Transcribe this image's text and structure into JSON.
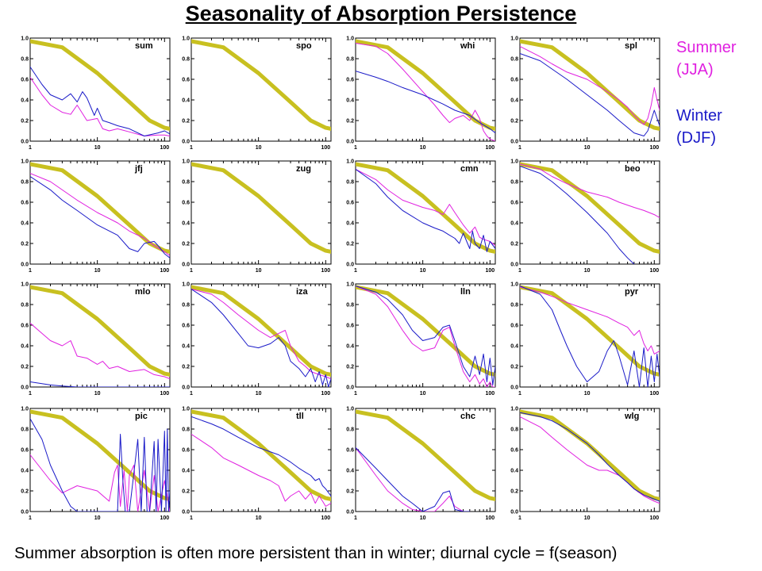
{
  "title": "Seasonality of Absorption Persistence",
  "legend": {
    "summer": [
      "Summer",
      "(JJA)"
    ],
    "winter": [
      "Winter",
      "(DJF)"
    ]
  },
  "caption": "Summer absorption is often more persistent than in winter; diurnal cycle = f(season)",
  "colors": {
    "reference": "#c8c020",
    "summer": "#e020e0",
    "winter": "#1a1ac8"
  },
  "chart_data": {
    "type": "line",
    "xscale": "log",
    "xlim": [
      1,
      120
    ],
    "ylim": [
      0,
      1
    ],
    "xticks": [
      "1",
      "10",
      "100"
    ],
    "yticks": [
      "0.0",
      "0.2",
      "0.4",
      "0.6",
      "0.8",
      "1.0"
    ],
    "reference": {
      "x": [
        1,
        3,
        10,
        30,
        60,
        100,
        120
      ],
      "y": [
        0.97,
        0.91,
        0.66,
        0.38,
        0.2,
        0.13,
        0.12
      ]
    },
    "panels": [
      {
        "name": "sum",
        "summer": {
          "x": [
            1,
            1.5,
            2,
            3,
            4,
            5,
            7,
            10,
            12,
            15,
            20,
            30,
            50,
            80,
            100,
            120
          ],
          "y": [
            0.62,
            0.45,
            0.35,
            0.28,
            0.26,
            0.35,
            0.2,
            0.22,
            0.12,
            0.1,
            0.12,
            0.09,
            0.05,
            0.06,
            0.06,
            0.05
          ]
        },
        "winter": {
          "x": [
            1,
            1.5,
            2,
            3,
            4,
            5,
            6,
            7,
            9,
            10,
            12,
            15,
            20,
            30,
            50,
            80,
            100,
            120
          ],
          "y": [
            0.72,
            0.55,
            0.45,
            0.4,
            0.46,
            0.38,
            0.48,
            0.42,
            0.25,
            0.32,
            0.2,
            0.18,
            0.15,
            0.12,
            0.05,
            0.08,
            0.1,
            0.07
          ]
        }
      },
      {
        "name": "spo",
        "summer": null,
        "winter": null
      },
      {
        "name": "whi",
        "summer": {
          "x": [
            1,
            2,
            3,
            5,
            10,
            15,
            20,
            25,
            30,
            40,
            50,
            60,
            70,
            80,
            90,
            100,
            120
          ],
          "y": [
            0.95,
            0.92,
            0.85,
            0.7,
            0.48,
            0.35,
            0.25,
            0.18,
            0.22,
            0.25,
            0.2,
            0.3,
            0.22,
            0.1,
            0.05,
            0.02,
            0.0
          ]
        },
        "winter": {
          "x": [
            1,
            2,
            3,
            5,
            10,
            20,
            30,
            50,
            70,
            100,
            120
          ],
          "y": [
            0.68,
            0.62,
            0.58,
            0.52,
            0.45,
            0.36,
            0.3,
            0.25,
            0.18,
            0.12,
            0.08
          ]
        }
      },
      {
        "name": "spl",
        "summer": {
          "x": [
            1,
            2,
            3,
            5,
            10,
            20,
            30,
            40,
            50,
            60,
            70,
            80,
            90,
            100,
            110,
            120
          ],
          "y": [
            0.92,
            0.82,
            0.75,
            0.67,
            0.6,
            0.48,
            0.4,
            0.33,
            0.25,
            0.2,
            0.16,
            0.22,
            0.35,
            0.52,
            0.4,
            0.3
          ]
        },
        "winter": {
          "x": [
            1,
            2,
            3,
            5,
            10,
            20,
            30,
            50,
            70,
            80,
            100,
            120
          ],
          "y": [
            0.85,
            0.78,
            0.7,
            0.6,
            0.45,
            0.3,
            0.2,
            0.08,
            0.05,
            0.1,
            0.3,
            0.15
          ]
        }
      },
      {
        "name": "jfj",
        "summer": {
          "x": [
            1,
            2,
            3,
            5,
            10,
            20,
            30,
            50,
            70,
            100,
            120
          ],
          "y": [
            0.88,
            0.8,
            0.72,
            0.62,
            0.5,
            0.4,
            0.32,
            0.25,
            0.18,
            0.12,
            0.08
          ]
        },
        "winter": {
          "x": [
            1,
            2,
            3,
            5,
            10,
            20,
            30,
            40,
            50,
            70,
            80,
            100,
            120
          ],
          "y": [
            0.85,
            0.72,
            0.62,
            0.52,
            0.38,
            0.28,
            0.15,
            0.12,
            0.2,
            0.22,
            0.18,
            0.1,
            0.06
          ]
        }
      },
      {
        "name": "zug",
        "summer": null,
        "winter": null
      },
      {
        "name": "cmn",
        "summer": {
          "x": [
            1,
            2,
            3,
            5,
            10,
            15,
            20,
            25,
            30,
            40,
            50,
            60,
            70,
            80,
            100,
            120
          ],
          "y": [
            0.92,
            0.82,
            0.72,
            0.62,
            0.55,
            0.52,
            0.48,
            0.58,
            0.5,
            0.38,
            0.3,
            0.36,
            0.26,
            0.24,
            0.22,
            0.18
          ]
        },
        "winter": {
          "x": [
            1,
            2,
            3,
            5,
            10,
            15,
            20,
            25,
            30,
            35,
            40,
            50,
            55,
            60,
            70,
            80,
            90,
            100,
            120
          ],
          "y": [
            0.92,
            0.78,
            0.65,
            0.52,
            0.4,
            0.35,
            0.32,
            0.28,
            0.25,
            0.2,
            0.3,
            0.15,
            0.32,
            0.2,
            0.15,
            0.28,
            0.12,
            0.22,
            0.15
          ]
        }
      },
      {
        "name": "beo",
        "summer": {
          "x": [
            1,
            2,
            3,
            5,
            10,
            20,
            30,
            50,
            70,
            100,
            120
          ],
          "y": [
            0.97,
            0.92,
            0.85,
            0.78,
            0.7,
            0.65,
            0.6,
            0.55,
            0.52,
            0.48,
            0.45
          ]
        },
        "winter": {
          "x": [
            1,
            2,
            3,
            5,
            10,
            20,
            30,
            40,
            50
          ],
          "y": [
            0.95,
            0.88,
            0.8,
            0.68,
            0.5,
            0.3,
            0.15,
            0.06,
            0.0
          ]
        }
      },
      {
        "name": "mlo",
        "summer": {
          "x": [
            1,
            1.5,
            2,
            3,
            4,
            5,
            7,
            10,
            12,
            15,
            20,
            30,
            50,
            70,
            100,
            120
          ],
          "y": [
            0.62,
            0.52,
            0.45,
            0.4,
            0.45,
            0.3,
            0.28,
            0.22,
            0.25,
            0.18,
            0.2,
            0.15,
            0.17,
            0.12,
            0.1,
            0.08
          ]
        },
        "winter": {
          "x": [
            1,
            2,
            3,
            5,
            10,
            20,
            50,
            100,
            120
          ],
          "y": [
            0.05,
            0.02,
            0.01,
            0.0,
            0.0,
            0.0,
            0.0,
            0.0,
            0.0
          ]
        }
      },
      {
        "name": "iza",
        "summer": {
          "x": [
            1,
            2,
            3,
            5,
            10,
            15,
            20,
            25,
            30,
            40,
            50,
            60,
            80,
            100,
            120
          ],
          "y": [
            0.95,
            0.9,
            0.82,
            0.7,
            0.55,
            0.48,
            0.52,
            0.55,
            0.4,
            0.25,
            0.2,
            0.15,
            0.12,
            0.1,
            0.08
          ]
        },
        "winter": {
          "x": [
            1,
            2,
            3,
            5,
            7,
            10,
            15,
            20,
            25,
            30,
            40,
            50,
            60,
            70,
            80,
            90,
            100,
            110,
            120
          ],
          "y": [
            0.95,
            0.82,
            0.7,
            0.52,
            0.4,
            0.38,
            0.42,
            0.48,
            0.4,
            0.25,
            0.18,
            0.1,
            0.18,
            0.05,
            0.15,
            0.02,
            0.12,
            0.0,
            0.08
          ]
        }
      },
      {
        "name": "lln",
        "summer": {
          "x": [
            1,
            2,
            3,
            5,
            7,
            10,
            15,
            20,
            25,
            30,
            40,
            50,
            60,
            70,
            80,
            90,
            100,
            110,
            120
          ],
          "y": [
            0.98,
            0.9,
            0.78,
            0.55,
            0.42,
            0.35,
            0.38,
            0.55,
            0.58,
            0.4,
            0.15,
            0.05,
            0.12,
            0.03,
            0.08,
            0.0,
            0.05,
            0.0,
            0.0
          ]
        },
        "winter": {
          "x": [
            1,
            2,
            3,
            5,
            7,
            10,
            15,
            20,
            25,
            30,
            40,
            50,
            60,
            70,
            80,
            90,
            100,
            110,
            120
          ],
          "y": [
            0.98,
            0.92,
            0.85,
            0.7,
            0.55,
            0.45,
            0.48,
            0.58,
            0.6,
            0.45,
            0.2,
            0.1,
            0.3,
            0.12,
            0.32,
            0.05,
            0.28,
            0.02,
            0.2
          ]
        }
      },
      {
        "name": "pyr",
        "summer": {
          "x": [
            1,
            2,
            3,
            5,
            10,
            20,
            30,
            40,
            50,
            60,
            70,
            80,
            90,
            100,
            120
          ],
          "y": [
            0.97,
            0.92,
            0.88,
            0.82,
            0.75,
            0.68,
            0.62,
            0.58,
            0.5,
            0.55,
            0.42,
            0.35,
            0.4,
            0.32,
            0.35
          ]
        },
        "winter": {
          "x": [
            1,
            2,
            3,
            4,
            5,
            7,
            10,
            15,
            20,
            25,
            30,
            40,
            50,
            60,
            70,
            80,
            90,
            100,
            110,
            120
          ],
          "y": [
            0.98,
            0.9,
            0.75,
            0.55,
            0.4,
            0.2,
            0.05,
            0.15,
            0.35,
            0.45,
            0.3,
            0.02,
            0.35,
            0.0,
            0.38,
            0.0,
            0.3,
            0.05,
            0.32,
            0.1
          ]
        }
      },
      {
        "name": "pic",
        "summer": {
          "x": [
            1,
            2,
            3,
            5,
            10,
            15,
            18,
            20,
            22,
            25,
            28,
            30,
            35,
            40,
            50,
            60,
            70,
            80,
            100,
            120
          ],
          "y": [
            0.55,
            0.3,
            0.18,
            0.25,
            0.2,
            0.1,
            0.38,
            0.45,
            0.05,
            0.4,
            0.0,
            0.35,
            0.45,
            0.0,
            0.4,
            0.0,
            0.35,
            0.0,
            0.3,
            0.0
          ]
        },
        "winter": {
          "x": [
            1,
            1.5,
            2,
            3,
            4,
            5,
            7,
            10,
            20,
            22,
            24,
            26,
            30,
            40,
            45,
            50,
            55,
            60,
            70,
            75,
            80,
            90,
            100,
            105,
            110,
            115,
            120
          ],
          "y": [
            0.9,
            0.7,
            0.45,
            0.2,
            0.05,
            0.0,
            0.0,
            0.0,
            0.0,
            0.75,
            0.3,
            0.0,
            0.0,
            0.7,
            0.0,
            0.72,
            0.0,
            0.0,
            0.68,
            0.0,
            0.7,
            0.0,
            0.78,
            0.0,
            0.8,
            0.0,
            0.2
          ]
        }
      },
      {
        "name": "tll",
        "summer": {
          "x": [
            1,
            2,
            3,
            5,
            10,
            15,
            20,
            25,
            30,
            40,
            50,
            60,
            70,
            80,
            90,
            100,
            120
          ],
          "y": [
            0.75,
            0.62,
            0.52,
            0.45,
            0.35,
            0.3,
            0.25,
            0.1,
            0.15,
            0.2,
            0.12,
            0.18,
            0.08,
            0.15,
            0.1,
            0.05,
            0.08
          ]
        },
        "winter": {
          "x": [
            1,
            2,
            3,
            5,
            10,
            20,
            30,
            40,
            50,
            60,
            70,
            80,
            90,
            100,
            120
          ],
          "y": [
            0.92,
            0.85,
            0.8,
            0.72,
            0.62,
            0.55,
            0.48,
            0.42,
            0.38,
            0.35,
            0.3,
            0.32,
            0.25,
            0.22,
            0.15
          ]
        }
      },
      {
        "name": "chc",
        "summer": {
          "x": [
            1,
            2,
            3,
            5,
            7,
            10,
            15,
            20,
            25,
            30,
            40,
            50
          ],
          "y": [
            0.62,
            0.35,
            0.2,
            0.08,
            0.02,
            0.0,
            0.0,
            0.08,
            0.15,
            0.05,
            0.0,
            0.0
          ]
        },
        "winter": {
          "x": [
            1,
            2,
            3,
            5,
            7,
            10,
            15,
            20,
            25,
            30,
            40,
            50
          ],
          "y": [
            0.62,
            0.42,
            0.3,
            0.15,
            0.08,
            0.0,
            0.05,
            0.18,
            0.2,
            0.02,
            0.0,
            0.0
          ]
        }
      },
      {
        "name": "wlg",
        "summer": {
          "x": [
            1,
            2,
            3,
            5,
            10,
            15,
            20,
            30,
            40,
            50,
            70,
            100,
            120
          ],
          "y": [
            0.92,
            0.82,
            0.72,
            0.6,
            0.45,
            0.4,
            0.4,
            0.35,
            0.28,
            0.22,
            0.15,
            0.1,
            0.08
          ]
        },
        "winter": {
          "x": [
            1,
            2,
            3,
            5,
            10,
            15,
            20,
            30,
            40,
            50,
            70,
            100,
            120
          ],
          "y": [
            0.96,
            0.92,
            0.88,
            0.8,
            0.66,
            0.55,
            0.46,
            0.35,
            0.28,
            0.22,
            0.16,
            0.12,
            0.1
          ]
        }
      }
    ]
  }
}
